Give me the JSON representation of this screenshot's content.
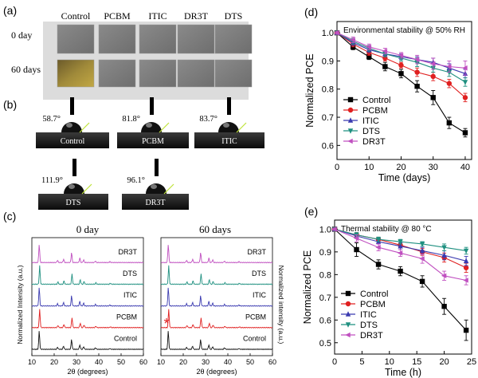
{
  "panels": {
    "a": {
      "label": "(a)",
      "columns": [
        "Control",
        "PCBM",
        "ITIC",
        "DR3T",
        "DTS"
      ],
      "rows": [
        "0 day",
        "60 days"
      ]
    },
    "b": {
      "label": "(b)",
      "samples": [
        {
          "name": "Control",
          "angle": "58.7°"
        },
        {
          "name": "PCBM",
          "angle": "81.8°"
        },
        {
          "name": "ITIC",
          "angle": "83.7°"
        },
        {
          "name": "DTS",
          "angle": "111.9°"
        },
        {
          "name": "DR3T",
          "angle": "96.1°"
        }
      ]
    },
    "c": {
      "label": "(c)",
      "left_title": "0 day",
      "right_title": "60 days",
      "ylabel_left": "Normalized Intensity (a.u.)",
      "ylabel_right": "Normalized intensity (a.u.)",
      "xlabel": "2θ (degrees)",
      "xticks": [
        "10",
        "20",
        "30",
        "40",
        "50",
        "60"
      ],
      "traces": [
        "DR3T",
        "DTS",
        "ITIC",
        "PCBM",
        "Control"
      ],
      "colors": [
        "#c050c0",
        "#1f9080",
        "#3a3ab0",
        "#e02020",
        "#111111"
      ]
    },
    "d": {
      "label": "(d)"
    },
    "e": {
      "label": "(e)"
    }
  },
  "chart_data": [
    {
      "type": "line",
      "panel": "(d)",
      "title": "Environmental stability @ 50% RH",
      "xlabel": "Time (days)",
      "ylabel": "Normalized PCE",
      "x": [
        0,
        5,
        10,
        15,
        20,
        25,
        30,
        35,
        40
      ],
      "xlim": [
        0,
        42
      ],
      "ylim": [
        0.55,
        1.04
      ],
      "xticks": [
        0,
        10,
        20,
        30,
        40
      ],
      "yticks": [
        0.6,
        0.7,
        0.8,
        0.9,
        1.0
      ],
      "legend_position": "bottom-left",
      "series": [
        {
          "name": "Control",
          "color": "#000000",
          "marker": "square",
          "values": [
            1.0,
            0.95,
            0.915,
            0.88,
            0.855,
            0.81,
            0.77,
            0.68,
            0.645
          ],
          "err": [
            0.005,
            0.01,
            0.01,
            0.015,
            0.015,
            0.02,
            0.025,
            0.02,
            0.015
          ]
        },
        {
          "name": "PCBM",
          "color": "#e02020",
          "marker": "circle",
          "values": [
            1.0,
            0.96,
            0.93,
            0.91,
            0.885,
            0.86,
            0.845,
            0.82,
            0.77
          ],
          "err": [
            0.005,
            0.01,
            0.01,
            0.01,
            0.01,
            0.015,
            0.015,
            0.015,
            0.015
          ]
        },
        {
          "name": "ITIC",
          "color": "#3a3ab0",
          "marker": "triangle-up",
          "values": [
            1.0,
            0.965,
            0.94,
            0.925,
            0.915,
            0.905,
            0.895,
            0.875,
            0.855
          ],
          "err": [
            0.005,
            0.01,
            0.01,
            0.01,
            0.01,
            0.01,
            0.015,
            0.015,
            0.015
          ]
        },
        {
          "name": "DTS",
          "color": "#1f9080",
          "marker": "triangle-down",
          "values": [
            1.0,
            0.97,
            0.945,
            0.925,
            0.91,
            0.895,
            0.875,
            0.86,
            0.825
          ],
          "err": [
            0.005,
            0.01,
            0.01,
            0.01,
            0.01,
            0.015,
            0.015,
            0.015,
            0.015
          ]
        },
        {
          "name": "DR3T",
          "color": "#c050c0",
          "marker": "triangle-left",
          "values": [
            1.0,
            0.975,
            0.95,
            0.935,
            0.92,
            0.905,
            0.89,
            0.88,
            0.875
          ],
          "err": [
            0.005,
            0.01,
            0.01,
            0.01,
            0.01,
            0.015,
            0.02,
            0.02,
            0.025
          ]
        }
      ]
    },
    {
      "type": "line",
      "panel": "(e)",
      "title": "Thermal stability @ 80 °C",
      "xlabel": "Time (h)",
      "ylabel": "Normalized PCE",
      "x": [
        0,
        4,
        8,
        12,
        16,
        20,
        24
      ],
      "xlim": [
        0,
        25
      ],
      "ylim": [
        0.45,
        1.04
      ],
      "xticks": [
        0,
        5,
        10,
        15,
        20,
        25
      ],
      "yticks": [
        0.5,
        0.6,
        0.7,
        0.8,
        0.9,
        1.0
      ],
      "legend_position": "bottom-left",
      "series": [
        {
          "name": "Control",
          "color": "#000000",
          "marker": "square",
          "values": [
            1.0,
            0.91,
            0.845,
            0.815,
            0.77,
            0.66,
            0.555
          ],
          "err": [
            0.005,
            0.03,
            0.02,
            0.02,
            0.025,
            0.035,
            0.045
          ]
        },
        {
          "name": "PCBM",
          "color": "#e02020",
          "marker": "circle",
          "values": [
            1.0,
            0.975,
            0.955,
            0.93,
            0.9,
            0.875,
            0.83
          ],
          "err": [
            0.005,
            0.01,
            0.01,
            0.01,
            0.015,
            0.02,
            0.02
          ]
        },
        {
          "name": "ITIC",
          "color": "#3a3ab0",
          "marker": "triangle-up",
          "values": [
            1.0,
            0.97,
            0.945,
            0.925,
            0.905,
            0.885,
            0.86
          ],
          "err": [
            0.005,
            0.01,
            0.01,
            0.015,
            0.015,
            0.02,
            0.02
          ]
        },
        {
          "name": "DTS",
          "color": "#1f9080",
          "marker": "triangle-down",
          "values": [
            1.0,
            0.975,
            0.955,
            0.945,
            0.935,
            0.92,
            0.905
          ],
          "err": [
            0.005,
            0.01,
            0.01,
            0.01,
            0.01,
            0.015,
            0.015
          ]
        },
        {
          "name": "DR3T",
          "color": "#c050c0",
          "marker": "triangle-left",
          "values": [
            1.0,
            0.96,
            0.92,
            0.895,
            0.87,
            0.795,
            0.775
          ],
          "err": [
            0.005,
            0.015,
            0.015,
            0.015,
            0.02,
            0.02,
            0.02
          ]
        }
      ]
    }
  ]
}
